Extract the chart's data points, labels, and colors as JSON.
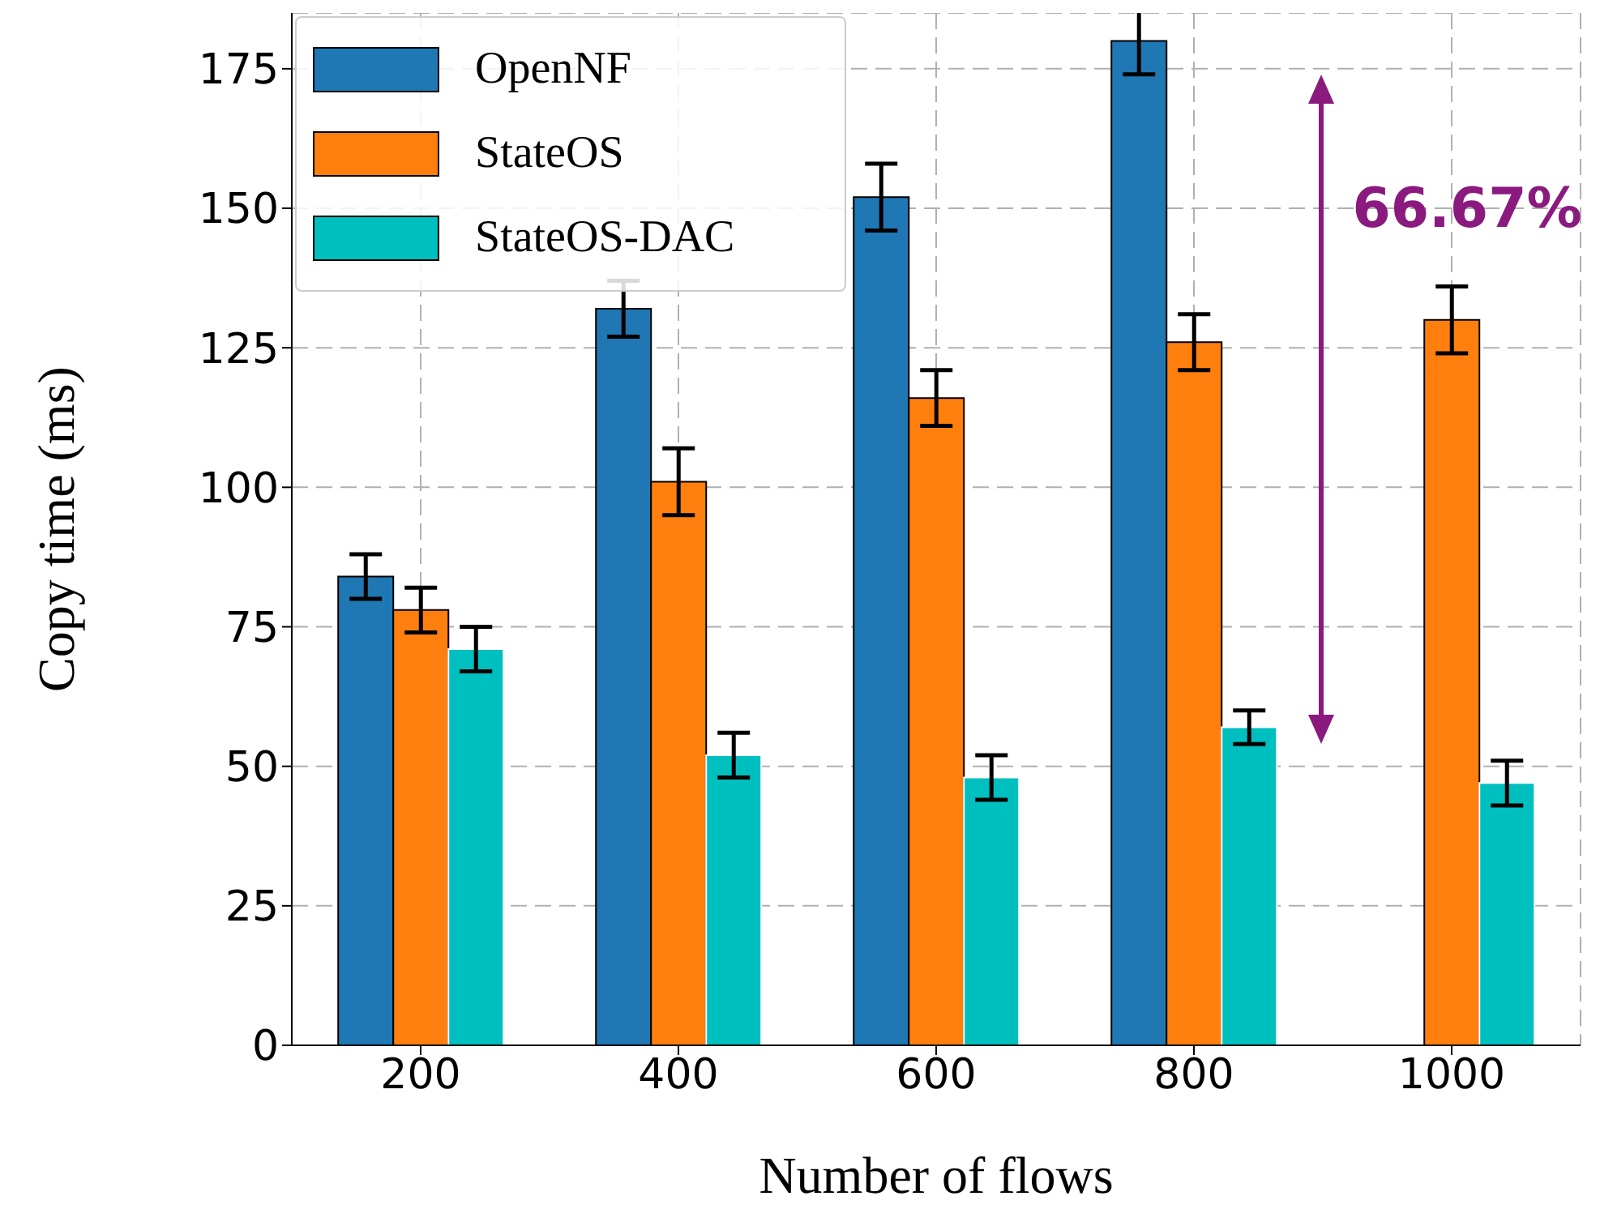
{
  "chart_data": {
    "type": "bar",
    "xlabel": "Number of flows",
    "ylabel": "Copy time (ms)",
    "categories": [
      "200",
      "400",
      "600",
      "800",
      "1000"
    ],
    "series": [
      {
        "name": "OpenNF",
        "color": "#1f77b4",
        "values": [
          84,
          132,
          152,
          180,
          null
        ],
        "errors": [
          4,
          5,
          6,
          6,
          null
        ]
      },
      {
        "name": "StateOS",
        "color": "#ff7f0e",
        "values": [
          78,
          101,
          116,
          126,
          130
        ],
        "errors": [
          4,
          6,
          5,
          5,
          6
        ]
      },
      {
        "name": "StateOS-DAC",
        "color": "#00bfbf",
        "values": [
          71,
          52,
          48,
          57,
          47
        ],
        "errors": [
          4,
          4,
          4,
          3,
          4
        ]
      }
    ],
    "ylim": [
      0,
      185
    ],
    "yticks": [
      0,
      25,
      50,
      75,
      100,
      125,
      150,
      175
    ],
    "grid": true,
    "legend": "top left",
    "annotations": [
      "66.67%"
    ]
  }
}
